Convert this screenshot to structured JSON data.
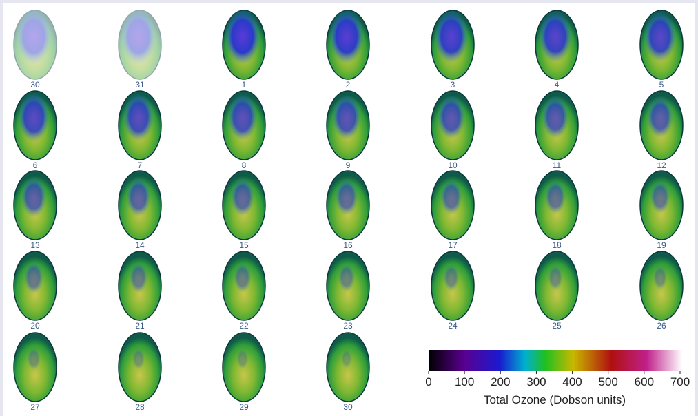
{
  "maps": [
    {
      "label": "30"
    },
    {
      "label": "31"
    },
    {
      "label": "1"
    },
    {
      "label": "2"
    },
    {
      "label": "3"
    },
    {
      "label": "4"
    },
    {
      "label": "5"
    },
    {
      "label": "6"
    },
    {
      "label": "7"
    },
    {
      "label": "8"
    },
    {
      "label": "9"
    },
    {
      "label": "10"
    },
    {
      "label": "11"
    },
    {
      "label": "12"
    },
    {
      "label": "13"
    },
    {
      "label": "14"
    },
    {
      "label": "15"
    },
    {
      "label": "16"
    },
    {
      "label": "17"
    },
    {
      "label": "18"
    },
    {
      "label": "19"
    },
    {
      "label": "20"
    },
    {
      "label": "21"
    },
    {
      "label": "22"
    },
    {
      "label": "23"
    },
    {
      "label": "24"
    },
    {
      "label": "25"
    },
    {
      "label": "26"
    },
    {
      "label": "27"
    },
    {
      "label": "28"
    },
    {
      "label": "29"
    },
    {
      "label": "30"
    }
  ],
  "colorbar": {
    "label": "Total Ozone (Dobson units)",
    "lim": [
      0,
      700
    ],
    "ticks": [
      0,
      100,
      200,
      300,
      400,
      500,
      600,
      700
    ]
  }
}
